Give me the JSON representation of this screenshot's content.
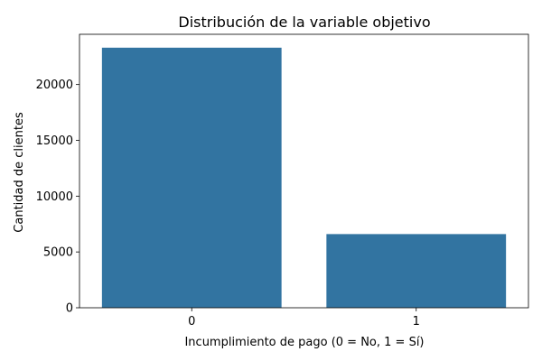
{
  "chart_data": {
    "type": "bar",
    "title": "Distribución de la variable objetivo",
    "xlabel": "Incumplimiento de pago (0 = No, 1 = Sí)",
    "ylabel": "Cantidad de clientes",
    "categories": [
      "0",
      "1"
    ],
    "values": [
      23300,
      6600
    ],
    "ylim": [
      0,
      24500
    ],
    "yticks": [
      0,
      5000,
      10000,
      15000,
      20000
    ],
    "ytick_labels": [
      "0",
      "5000",
      "10000",
      "15000",
      "20000"
    ],
    "grid": false,
    "legend": "none",
    "bar_color": "#3274a1"
  }
}
